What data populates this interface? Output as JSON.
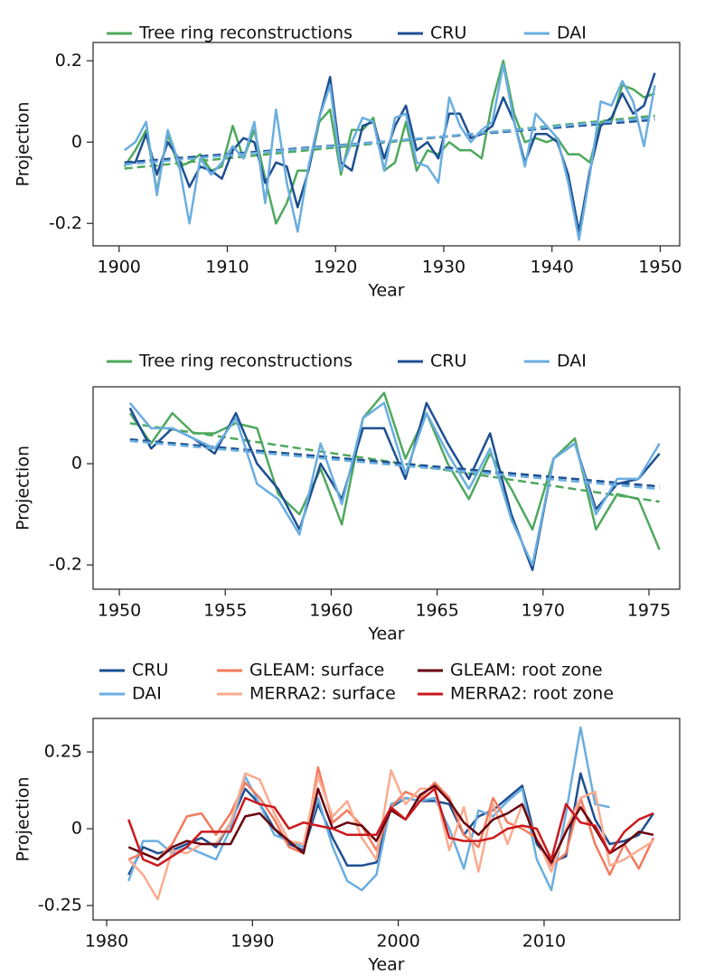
{
  "chart_data": [
    {
      "type": "line",
      "x_label": "Year",
      "y_label": "Projection",
      "xlim": [
        1897.6,
        1951.8
      ],
      "ylim": [
        -0.255,
        0.245
      ],
      "xticks": [
        1900,
        1910,
        1920,
        1930,
        1940,
        1950
      ],
      "yticks": [
        -0.2,
        0,
        0.2
      ],
      "x": [
        1900.5,
        1901.5,
        1902.5,
        1903.5,
        1904.5,
        1905.5,
        1906.5,
        1907.5,
        1908.5,
        1909.5,
        1910.5,
        1911.5,
        1912.5,
        1913.5,
        1914.5,
        1915.5,
        1916.5,
        1917.5,
        1918.5,
        1919.5,
        1920.5,
        1921.5,
        1922.5,
        1923.5,
        1924.5,
        1925.5,
        1926.5,
        1927.5,
        1928.5,
        1929.5,
        1930.5,
        1931.5,
        1932.5,
        1933.5,
        1934.5,
        1935.5,
        1936.5,
        1937.5,
        1938.5,
        1939.5,
        1940.5,
        1941.5,
        1942.5,
        1943.5,
        1944.5,
        1945.5,
        1946.5,
        1947.5,
        1948.5,
        1949.5
      ],
      "series": [
        {
          "name": "Tree ring reconstructions",
          "color": "#4fa85e",
          "trend": [
            -0.065,
            0.065
          ],
          "values": [
            -0.06,
            -0.02,
            0.03,
            -0.12,
            0.02,
            -0.06,
            -0.05,
            -0.03,
            -0.07,
            -0.06,
            0.04,
            -0.04,
            0.03,
            -0.09,
            -0.2,
            -0.15,
            -0.07,
            -0.07,
            0.05,
            0.08,
            -0.08,
            0.03,
            0.03,
            0.06,
            -0.07,
            -0.05,
            0.05,
            -0.07,
            -0.02,
            -0.03,
            0.0,
            -0.02,
            -0.02,
            -0.04,
            0.1,
            0.2,
            0.07,
            0.0,
            0.01,
            0.0,
            0.01,
            -0.03,
            -0.03,
            -0.05,
            0.05,
            0.05,
            0.14,
            0.13,
            0.11,
            0.12
          ]
        },
        {
          "name": "CRU",
          "color": "#1d4f91",
          "trend": [
            -0.05,
            0.055
          ],
          "values": [
            -0.05,
            -0.05,
            0.02,
            -0.08,
            0.0,
            -0.04,
            -0.11,
            -0.06,
            -0.07,
            -0.09,
            -0.02,
            0.01,
            0.0,
            -0.1,
            -0.05,
            -0.06,
            -0.16,
            -0.07,
            0.06,
            0.16,
            -0.05,
            -0.07,
            0.04,
            0.05,
            -0.04,
            0.04,
            0.09,
            -0.02,
            0.0,
            -0.04,
            0.07,
            0.07,
            0.01,
            0.02,
            0.04,
            0.11,
            0.05,
            -0.05,
            0.02,
            0.02,
            0.0,
            -0.08,
            -0.22,
            -0.07,
            0.04,
            0.06,
            0.12,
            0.07,
            0.09,
            0.17
          ]
        },
        {
          "name": "DAI",
          "color": "#6aaee0",
          "trend": [
            -0.055,
            0.06
          ],
          "values": [
            -0.02,
            0.0,
            0.05,
            -0.13,
            0.03,
            -0.05,
            -0.2,
            -0.04,
            -0.08,
            -0.05,
            -0.01,
            -0.04,
            0.05,
            -0.15,
            0.08,
            -0.1,
            -0.22,
            -0.06,
            0.06,
            0.14,
            -0.07,
            0.0,
            0.06,
            0.05,
            -0.07,
            0.06,
            0.07,
            -0.05,
            -0.06,
            -0.1,
            0.11,
            0.04,
            0.0,
            0.03,
            0.05,
            0.19,
            0.05,
            -0.06,
            0.07,
            0.04,
            0.01,
            -0.1,
            -0.24,
            -0.08,
            0.1,
            0.09,
            0.15,
            0.1,
            -0.01,
            0.14
          ]
        }
      ]
    },
    {
      "type": "line",
      "x_label": "Year",
      "y_label": "Projection",
      "xlim": [
        1948.76,
        1976.45
      ],
      "ylim": [
        -0.248,
        0.152
      ],
      "xticks": [
        1950,
        1955,
        1960,
        1965,
        1970,
        1975
      ],
      "yticks": [
        -0.2,
        0
      ],
      "x": [
        1950.5,
        1951.5,
        1952.5,
        1953.5,
        1954.5,
        1955.5,
        1956.5,
        1957.5,
        1958.5,
        1959.5,
        1960.5,
        1961.5,
        1962.5,
        1963.5,
        1964.5,
        1965.5,
        1966.5,
        1967.5,
        1968.5,
        1969.5,
        1970.5,
        1971.5,
        1972.5,
        1973.5,
        1974.5,
        1975.5
      ],
      "series": [
        {
          "name": "Tree ring reconstructions",
          "color": "#4fa85e",
          "trend": [
            0.08,
            -0.075
          ],
          "values": [
            0.1,
            0.04,
            0.1,
            0.06,
            0.06,
            0.08,
            0.07,
            -0.06,
            -0.1,
            -0.01,
            -0.12,
            0.09,
            0.14,
            0.01,
            0.1,
            0.0,
            -0.07,
            0.02,
            -0.05,
            -0.13,
            0.01,
            0.05,
            -0.13,
            -0.06,
            -0.07,
            -0.17
          ]
        },
        {
          "name": "CRU",
          "color": "#1d4f91",
          "trend": [
            0.048,
            -0.045
          ],
          "values": [
            0.11,
            0.03,
            0.07,
            0.05,
            0.02,
            0.1,
            0.0,
            -0.05,
            -0.13,
            0.0,
            -0.07,
            0.07,
            0.07,
            -0.03,
            0.12,
            0.04,
            -0.03,
            0.06,
            -0.1,
            -0.21,
            0.01,
            0.04,
            -0.09,
            -0.04,
            -0.03,
            0.02
          ]
        },
        {
          "name": "DAI",
          "color": "#6aaee0",
          "trend": [
            0.045,
            -0.05
          ],
          "values": [
            0.12,
            0.07,
            0.07,
            0.05,
            0.03,
            0.09,
            -0.04,
            -0.07,
            -0.14,
            0.04,
            -0.08,
            0.09,
            0.12,
            -0.02,
            0.1,
            0.02,
            -0.05,
            0.03,
            -0.11,
            -0.2,
            0.01,
            0.04,
            -0.1,
            -0.03,
            -0.03,
            0.04
          ]
        }
      ]
    },
    {
      "type": "line",
      "x_label": "Year",
      "y_label": "Projection",
      "xlim": [
        1979.07,
        2019.3
      ],
      "ylim": [
        -0.297,
        0.359
      ],
      "xticks": [
        1980,
        1990,
        2000,
        2010
      ],
      "yticks": [
        -0.25,
        0,
        0.25
      ],
      "x": [
        1981.5,
        1982.5,
        1983.5,
        1984.5,
        1985.5,
        1986.5,
        1987.5,
        1988.5,
        1989.5,
        1990.5,
        1991.5,
        1992.5,
        1993.5,
        1994.5,
        1995.5,
        1996.5,
        1997.5,
        1998.5,
        1999.5,
        2000.5,
        2001.5,
        2002.5,
        2003.5,
        2004.5,
        2005.5,
        2006.5,
        2007.5,
        2008.5,
        2009.5,
        2010.5,
        2011.5,
        2012.5,
        2013.5,
        2014.5,
        2015.5,
        2016.5,
        2017.5
      ],
      "series": [
        {
          "name": "CRU",
          "color": "#1d4f91",
          "values": [
            -0.15,
            -0.06,
            -0.08,
            -0.07,
            -0.05,
            -0.03,
            -0.06,
            0.02,
            0.13,
            0.08,
            0.0,
            -0.05,
            -0.07,
            0.08,
            -0.03,
            -0.12,
            -0.12,
            -0.11,
            0.07,
            0.1,
            0.09,
            0.09,
            0.08,
            -0.02,
            0.04,
            0.06,
            0.1,
            0.14,
            -0.05,
            -0.11,
            -0.09,
            0.18,
            0.03,
            -0.05,
            -0.04,
            -0.02,
            0.05
          ]
        },
        {
          "name": "DAI",
          "color": "#6aaee0",
          "values": [
            -0.17,
            -0.04,
            -0.04,
            -0.08,
            -0.06,
            -0.08,
            -0.1,
            0.0,
            0.17,
            0.08,
            -0.02,
            -0.04,
            -0.06,
            0.1,
            -0.06,
            -0.17,
            -0.2,
            -0.15,
            0.08,
            0.1,
            0.09,
            0.1,
            0.0,
            -0.13,
            0.06,
            0.04,
            0.09,
            0.13,
            -0.1,
            -0.2,
            0.05,
            0.33,
            0.08,
            0.07,
            null,
            null,
            null
          ]
        },
        {
          "name": "GLEAM: surface",
          "color": "#f47b5e",
          "values": [
            -0.1,
            -0.08,
            -0.1,
            -0.05,
            0.04,
            0.05,
            -0.02,
            0.05,
            0.15,
            0.1,
            0.03,
            -0.06,
            -0.08,
            0.2,
            0.02,
            0.06,
            0.01,
            -0.07,
            0.07,
            0.12,
            0.1,
            0.15,
            0.1,
            -0.02,
            -0.06,
            0.1,
            0.02,
            0.0,
            -0.03,
            -0.12,
            -0.08,
            0.1,
            -0.05,
            -0.15,
            -0.05,
            -0.13,
            -0.03
          ]
        },
        {
          "name": "MERRA2: surface",
          "color": "#fbab8f",
          "values": [
            -0.1,
            -0.15,
            -0.23,
            -0.07,
            -0.08,
            -0.05,
            -0.05,
            0.02,
            0.18,
            0.16,
            0.05,
            -0.04,
            -0.05,
            0.17,
            0.04,
            0.09,
            -0.03,
            -0.1,
            0.19,
            0.08,
            0.13,
            0.13,
            -0.07,
            0.07,
            -0.14,
            0.08,
            -0.05,
            0.08,
            -0.03,
            -0.14,
            0.0,
            0.1,
            0.12,
            -0.12,
            -0.1,
            -0.07,
            -0.04
          ]
        },
        {
          "name": "GLEAM: root zone",
          "color": "#67000d",
          "values": [
            -0.06,
            -0.08,
            -0.1,
            -0.06,
            -0.04,
            -0.05,
            -0.05,
            -0.05,
            0.04,
            0.05,
            0.0,
            -0.04,
            -0.08,
            0.13,
            0.0,
            0.02,
            0.01,
            -0.04,
            0.06,
            0.03,
            0.11,
            0.14,
            0.09,
            0.02,
            -0.02,
            0.03,
            0.05,
            0.08,
            -0.04,
            -0.11,
            -0.01,
            0.07,
            0.0,
            -0.08,
            -0.05,
            -0.01,
            -0.02
          ]
        },
        {
          "name": "MERRA2: root zone",
          "color": "#cb181d",
          "values": [
            0.03,
            -0.1,
            -0.12,
            -0.09,
            -0.06,
            -0.01,
            -0.01,
            -0.01,
            0.1,
            0.08,
            0.07,
            0.0,
            0.02,
            0.01,
            0.0,
            -0.02,
            -0.02,
            -0.02,
            0.07,
            0.03,
            0.09,
            0.13,
            -0.03,
            -0.04,
            -0.04,
            -0.03,
            0.0,
            0.01,
            0.0,
            -0.1,
            0.08,
            0.02,
            0.01,
            -0.08,
            -0.01,
            0.03,
            0.05
          ]
        }
      ]
    }
  ]
}
